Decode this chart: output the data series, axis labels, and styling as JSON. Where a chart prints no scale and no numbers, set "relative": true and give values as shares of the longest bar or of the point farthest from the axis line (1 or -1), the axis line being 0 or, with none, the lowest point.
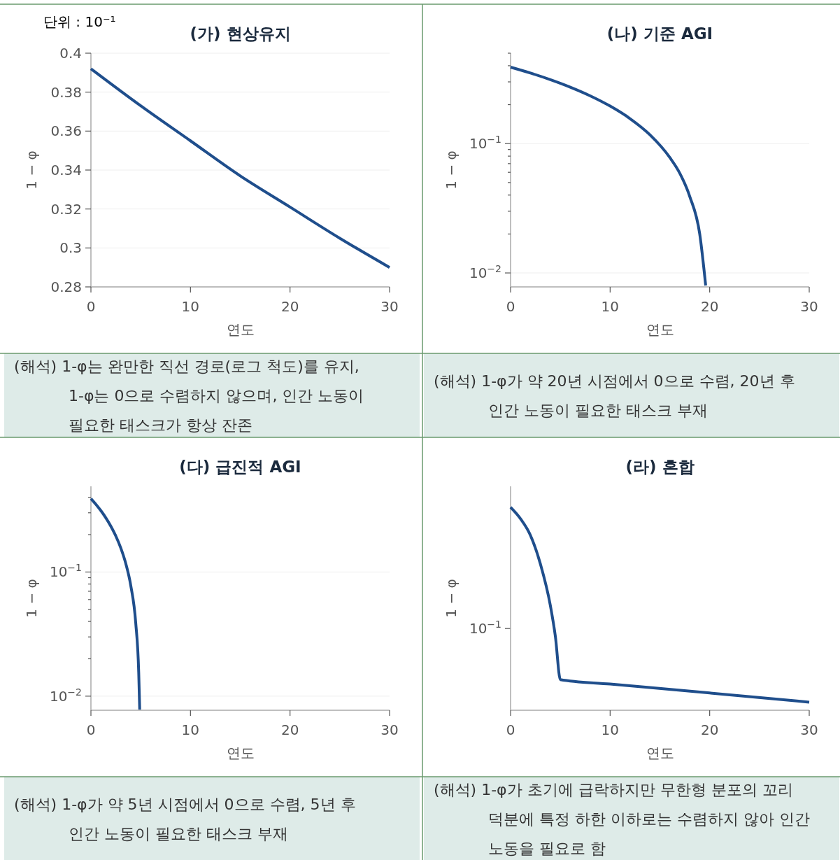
{
  "chart_data": [
    {
      "type": "line",
      "title": "(가) 현상유지",
      "xlabel": "연도",
      "ylabel": "1 − φ",
      "x": [
        0,
        5,
        10,
        15,
        20,
        25,
        30
      ],
      "series": [
        {
          "color": "#1f4e8c",
          "values": [
            0.392,
            0.373,
            0.355,
            0.337,
            0.321,
            0.305,
            0.29
          ]
        }
      ],
      "xlim": [
        0,
        30
      ],
      "xticks": [
        0,
        10,
        20,
        30
      ],
      "ylim": [
        0.28,
        0.4
      ],
      "yticks": [
        0.28,
        0.3,
        0.32,
        0.34,
        0.36,
        0.38,
        0.4
      ],
      "grid": "y",
      "annotations": [
        "단위 : 10⁻¹",
        "(해석) 1-φ는 완만한 직선 경로(로그 척도)를 유지, 1-φ는 0으로 수렴하지 않으며, 인간 노동이 필요한 태스크가 항상 잔존"
      ]
    },
    {
      "type": "line",
      "title": "(나) 기준 AGI",
      "xlabel": "연도",
      "ylabel": "1 − φ",
      "log": "y",
      "x": [
        0,
        2,
        4,
        6,
        8,
        10,
        12,
        14,
        16,
        17,
        18,
        19,
        19.6
      ],
      "series": [
        {
          "color": "#1f4e8c",
          "values": [
            0.39,
            0.351,
            0.312,
            0.273,
            0.234,
            0.195,
            0.156,
            0.117,
            0.078,
            0.059,
            0.039,
            0.02,
            0.008
          ]
        }
      ],
      "xlim": [
        0,
        30
      ],
      "xticks": [
        0,
        10,
        20,
        30
      ],
      "ylim": [
        0.0078,
        0.5
      ],
      "yticks": [
        {
          "value": 0.01,
          "label": "10$^{−2}$"
        },
        {
          "value": 0.02,
          "label": null
        },
        {
          "value": 0.03,
          "label": null
        },
        {
          "value": 0.04,
          "label": null
        },
        {
          "value": 0.05,
          "label": null
        },
        {
          "value": 0.06,
          "label": null
        },
        {
          "value": 0.07,
          "label": null
        },
        {
          "value": 0.08,
          "label": null
        },
        {
          "value": 0.09,
          "label": null
        },
        {
          "value": 0.1,
          "label": "10$^{−1}$"
        },
        {
          "value": 0.2,
          "label": null
        },
        {
          "value": 0.3,
          "label": null
        },
        {
          "value": 0.4,
          "label": null
        },
        {
          "value": 0.5,
          "label": null
        }
      ],
      "grid": "y",
      "annotations": [
        "(해석) 1-φ가 약 20년 시점에서 0으로 수렴, 20년 후 인간 노동이 필요한 태스크 부재"
      ]
    },
    {
      "type": "line",
      "title": "(다) 급진적 AGI",
      "xlabel": "연도",
      "ylabel": "1 − φ",
      "log": "y",
      "x": [
        0,
        0.5,
        1,
        1.5,
        2,
        2.5,
        3,
        3.5,
        4,
        4.5,
        4.8,
        4.9
      ],
      "series": [
        {
          "color": "#1f4e8c",
          "values": [
            0.39,
            0.351,
            0.312,
            0.273,
            0.234,
            0.195,
            0.156,
            0.117,
            0.078,
            0.039,
            0.0156,
            0.0078
          ]
        }
      ],
      "xlim": [
        0,
        30
      ],
      "xticks": [
        0,
        10,
        20,
        30
      ],
      "ylim": [
        0.0077,
        0.49
      ],
      "yticks": [
        {
          "value": 0.01,
          "label": "10$^{−2}$"
        },
        {
          "value": 0.02,
          "label": null
        },
        {
          "value": 0.03,
          "label": null
        },
        {
          "value": 0.04,
          "label": null
        },
        {
          "value": 0.05,
          "label": null
        },
        {
          "value": 0.06,
          "label": null
        },
        {
          "value": 0.07,
          "label": null
        },
        {
          "value": 0.08,
          "label": null
        },
        {
          "value": 0.09,
          "label": null
        },
        {
          "value": 0.1,
          "label": "10$^{−1}$"
        },
        {
          "value": 0.2,
          "label": null
        },
        {
          "value": 0.3,
          "label": null
        },
        {
          "value": 0.4,
          "label": null
        }
      ],
      "grid": "y",
      "annotations": [
        "(해석) 1-φ가 약 5년 시점에서 0으로 수렴, 5년 후 인간 노동이 필요한 태스크 부재"
      ]
    },
    {
      "type": "line",
      "title": "(라) 혼합",
      "xlabel": "연도",
      "ylabel": "1 − φ",
      "relative": true,
      "x": [
        0,
        1,
        2,
        3,
        4,
        4.5,
        5,
        10,
        20,
        30
      ],
      "series": [
        {
          "color": "#1f4e8c",
          "values": [
            1,
            0.943,
            0.861,
            0.72,
            0.515,
            0.364,
            0.151,
            0.129,
            0.085,
            0.04
          ]
        }
      ],
      "xlim": [
        0,
        30
      ],
      "xticks": [
        0,
        10,
        20,
        30
      ],
      "annotations": [
        "10$^{−1}$",
        "(해석) 1-φ가 초기에 급락하지만 무한형 분포의 꼬리 덕분에 특정 하한 이하로는 수렴하지 않아 인간 노동을 필요로 함"
      ]
    }
  ]
}
